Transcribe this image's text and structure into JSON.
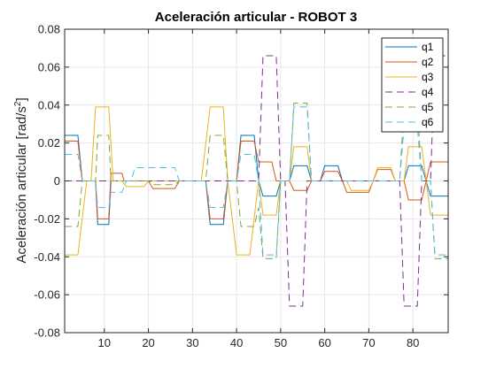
{
  "chart_data": {
    "type": "line",
    "title": "Aceleración articular - ROBOT 3",
    "xlabel": "",
    "ylabel": "Aceleración articular [rad/s",
    "ylabel_sup": "2",
    "ylabel_end": "]",
    "xlim": [
      1,
      88
    ],
    "ylim": [
      -0.08,
      0.08
    ],
    "xticks": [
      10,
      20,
      30,
      40,
      50,
      60,
      70,
      80
    ],
    "yticks": [
      -0.08,
      -0.06,
      -0.04,
      -0.02,
      0,
      0.02,
      0.04,
      0.06,
      0.08
    ],
    "ytick_labels": [
      "-0.08",
      "-0.06",
      "-0.04",
      "-0.02",
      "0",
      "0.02",
      "0.04",
      "0.06",
      "0.08"
    ],
    "grid": true,
    "legend_position": "top-right",
    "series": [
      {
        "name": "q1",
        "color": "#0072BD",
        "dash": "solid",
        "points": [
          [
            1,
            0.024
          ],
          [
            4,
            0.024
          ],
          [
            5,
            0.0
          ],
          [
            8,
            0.0
          ],
          [
            8.5,
            -0.023
          ],
          [
            11,
            -0.023
          ],
          [
            11.5,
            0.0
          ],
          [
            14,
            0.0
          ],
          [
            14.5,
            0.0
          ],
          [
            32,
            0.0
          ],
          [
            33,
            0.0
          ],
          [
            34,
            -0.023
          ],
          [
            37,
            -0.023
          ],
          [
            38,
            0.0
          ],
          [
            40,
            0.0
          ],
          [
            41,
            0.024
          ],
          [
            44,
            0.024
          ],
          [
            45,
            0.0
          ],
          [
            46,
            -0.008
          ],
          [
            49,
            -0.008
          ],
          [
            50,
            0.0
          ],
          [
            52,
            0.0
          ],
          [
            53,
            0.008
          ],
          [
            56,
            0.008
          ],
          [
            57,
            0.0
          ],
          [
            59,
            0.0
          ],
          [
            60,
            0.008
          ],
          [
            63,
            0.008
          ],
          [
            64,
            0.0
          ],
          [
            78,
            0.0
          ],
          [
            79,
            0.008
          ],
          [
            82,
            0.008
          ],
          [
            83,
            0.0
          ],
          [
            84,
            -0.008
          ],
          [
            88,
            -0.008
          ]
        ]
      },
      {
        "name": "q2",
        "color": "#D95319",
        "dash": "solid",
        "points": [
          [
            1,
            0.021
          ],
          [
            4,
            0.021
          ],
          [
            5,
            0.0
          ],
          [
            8,
            0.0
          ],
          [
            8.5,
            -0.02
          ],
          [
            11,
            -0.02
          ],
          [
            11.5,
            0.004
          ],
          [
            14,
            0.004
          ],
          [
            14.5,
            0.0
          ],
          [
            20,
            0.0
          ],
          [
            21,
            -0.004
          ],
          [
            26,
            -0.004
          ],
          [
            27,
            0.0
          ],
          [
            33,
            0.0
          ],
          [
            34,
            -0.02
          ],
          [
            37,
            -0.02
          ],
          [
            38,
            0.0
          ],
          [
            40,
            0.0
          ],
          [
            41,
            0.021
          ],
          [
            44,
            0.021
          ],
          [
            45,
            0.01
          ],
          [
            48,
            0.01
          ],
          [
            49,
            0.0
          ],
          [
            52,
            0.0
          ],
          [
            53,
            -0.005
          ],
          [
            56,
            -0.005
          ],
          [
            57,
            0.0
          ],
          [
            59,
            0.0
          ],
          [
            60,
            0.005
          ],
          [
            63,
            0.005
          ],
          [
            64,
            0.0
          ],
          [
            65,
            -0.006
          ],
          [
            70,
            -0.006
          ],
          [
            71,
            0.0
          ],
          [
            72,
            0.006
          ],
          [
            75,
            0.006
          ],
          [
            76,
            0.0
          ],
          [
            78,
            0.0
          ],
          [
            79,
            -0.01
          ],
          [
            82,
            -0.01
          ],
          [
            83,
            0.0
          ],
          [
            84,
            0.01
          ],
          [
            88,
            0.01
          ]
        ]
      },
      {
        "name": "q3",
        "color": "#EDB120",
        "dash": "solid",
        "points": [
          [
            1,
            -0.039
          ],
          [
            4,
            -0.039
          ],
          [
            6,
            0.0
          ],
          [
            7,
            0.0
          ],
          [
            8,
            0.039
          ],
          [
            11,
            0.039
          ],
          [
            12,
            0.0
          ],
          [
            14,
            0.0
          ],
          [
            15,
            -0.003
          ],
          [
            19,
            -0.003
          ],
          [
            20,
            0.0
          ],
          [
            32,
            0.0
          ],
          [
            34,
            0.039
          ],
          [
            37,
            0.039
          ],
          [
            38,
            0.0
          ],
          [
            40,
            -0.039
          ],
          [
            43,
            -0.039
          ],
          [
            45,
            0.0
          ],
          [
            46,
            -0.018
          ],
          [
            49,
            -0.018
          ],
          [
            50,
            0.0
          ],
          [
            52,
            0.0
          ],
          [
            53,
            0.018
          ],
          [
            56,
            0.018
          ],
          [
            57,
            0.0
          ],
          [
            65,
            0.0
          ],
          [
            66,
            -0.005
          ],
          [
            70,
            -0.005
          ],
          [
            71,
            0.0
          ],
          [
            72,
            0.007
          ],
          [
            75,
            0.007
          ],
          [
            76,
            0.0
          ],
          [
            78,
            0.0
          ],
          [
            79,
            0.018
          ],
          [
            82,
            0.018
          ],
          [
            83,
            0.0
          ],
          [
            84,
            -0.018
          ],
          [
            88,
            -0.018
          ]
        ]
      },
      {
        "name": "q4",
        "color": "#7E2F8E",
        "dash": "dashed",
        "points": [
          [
            1,
            0.0
          ],
          [
            44,
            0.0
          ],
          [
            45,
            0.0
          ],
          [
            46,
            0.066
          ],
          [
            49,
            0.066
          ],
          [
            50,
            0.0
          ],
          [
            51,
            0.0
          ],
          [
            52,
            -0.066
          ],
          [
            55,
            -0.066
          ],
          [
            56,
            0.0
          ],
          [
            77,
            0.0
          ],
          [
            78,
            -0.066
          ],
          [
            81,
            -0.066
          ],
          [
            82,
            0.0
          ],
          [
            84,
            0.0
          ],
          [
            85,
            0.066
          ],
          [
            88,
            0.066
          ]
        ]
      },
      {
        "name": "q5",
        "color": "#77AC30",
        "dash": "dashed",
        "points": [
          [
            1,
            -0.024
          ],
          [
            4,
            -0.024
          ],
          [
            5,
            0.0
          ],
          [
            8,
            0.0
          ],
          [
            8.5,
            0.024
          ],
          [
            11,
            0.024
          ],
          [
            11.5,
            0.0
          ],
          [
            14,
            0.0
          ],
          [
            14.5,
            0.0
          ],
          [
            20,
            0.0
          ],
          [
            21,
            -0.002
          ],
          [
            26,
            -0.002
          ],
          [
            27,
            0.0
          ],
          [
            33,
            0.0
          ],
          [
            34,
            0.024
          ],
          [
            37,
            0.024
          ],
          [
            38,
            0.0
          ],
          [
            40,
            0.0
          ],
          [
            41,
            -0.024
          ],
          [
            44,
            -0.024
          ],
          [
            45,
            -0.014
          ],
          [
            46,
            -0.041
          ],
          [
            49,
            -0.041
          ],
          [
            50,
            0.0
          ],
          [
            52,
            0.0
          ],
          [
            53,
            0.041
          ],
          [
            56,
            0.041
          ],
          [
            57,
            0.0
          ],
          [
            77,
            0.0
          ],
          [
            78,
            0.041
          ],
          [
            81,
            0.041
          ],
          [
            82,
            0.0
          ],
          [
            84,
            0.0
          ],
          [
            85,
            -0.041
          ],
          [
            88,
            -0.041
          ]
        ]
      },
      {
        "name": "q6",
        "color": "#4DBEEE",
        "dash": "dashed",
        "points": [
          [
            1,
            0.014
          ],
          [
            4,
            0.014
          ],
          [
            5,
            0.0
          ],
          [
            8,
            0.0
          ],
          [
            8.5,
            -0.014
          ],
          [
            11,
            -0.014
          ],
          [
            11.5,
            -0.006
          ],
          [
            14,
            -0.006
          ],
          [
            15,
            0.0
          ],
          [
            16,
            0.0
          ],
          [
            17,
            0.007
          ],
          [
            26,
            0.007
          ],
          [
            27,
            0.0
          ],
          [
            33,
            0.0
          ],
          [
            34,
            -0.014
          ],
          [
            37,
            -0.014
          ],
          [
            38,
            0.0
          ],
          [
            40,
            0.0
          ],
          [
            41,
            0.014
          ],
          [
            44,
            0.014
          ],
          [
            45,
            0.0
          ],
          [
            46,
            -0.039
          ],
          [
            49,
            -0.039
          ],
          [
            50,
            0.0
          ],
          [
            52,
            0.0
          ],
          [
            53,
            0.039
          ],
          [
            56,
            0.039
          ],
          [
            57,
            0.0
          ],
          [
            77,
            0.0
          ],
          [
            78,
            0.029
          ],
          [
            81,
            0.029
          ],
          [
            82,
            0.0
          ],
          [
            84,
            0.0
          ],
          [
            85,
            -0.039
          ],
          [
            88,
            -0.039
          ]
        ]
      }
    ]
  }
}
